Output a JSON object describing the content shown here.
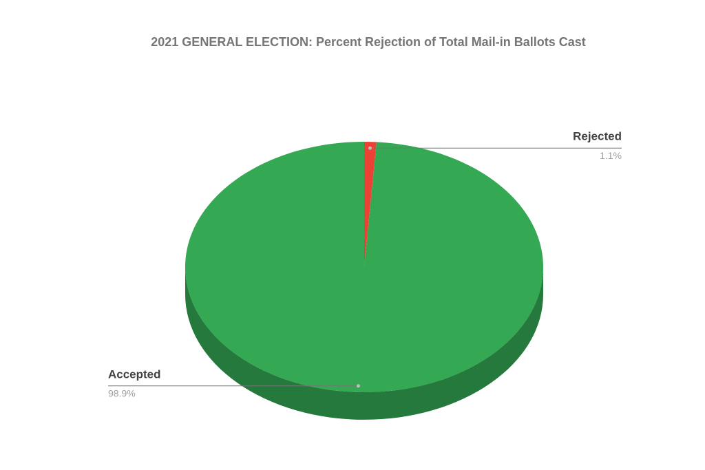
{
  "chart_data": {
    "type": "pie",
    "title": "2021 GENERAL ELECTION: Percent Rejection of Total Mail-in Ballots Cast",
    "categories": [
      "Rejected",
      "Accepted"
    ],
    "values": [
      1.1,
      98.9
    ],
    "value_labels": [
      "1.1%",
      "98.9%"
    ],
    "colors": [
      "#ea4335",
      "#34a853"
    ],
    "three_d": true
  }
}
